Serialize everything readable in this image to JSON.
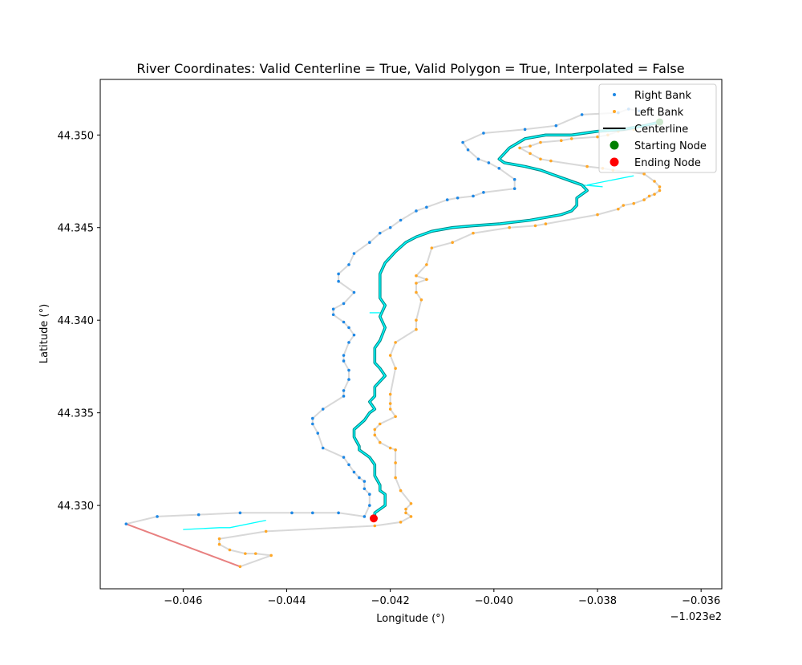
{
  "chart_data": {
    "type": "scatter",
    "title": "River Coordinates: Valid Centerline = True, Valid Polygon = True, Interpolated = False",
    "xlabel": "Longitude (°)",
    "ylabel": "Latitude (°)",
    "x_offset_text": "−1.023e2",
    "xlim": [
      -0.0476,
      -0.0356
    ],
    "ylim": [
      44.3255,
      44.353
    ],
    "xticks": [
      {
        "v": -0.046,
        "label": "−0.046"
      },
      {
        "v": -0.044,
        "label": "−0.044"
      },
      {
        "v": -0.042,
        "label": "−0.042"
      },
      {
        "v": -0.04,
        "label": "−0.040"
      },
      {
        "v": -0.038,
        "label": "−0.038"
      },
      {
        "v": -0.036,
        "label": "−0.036"
      }
    ],
    "yticks": [
      {
        "v": 44.33,
        "label": "44.330"
      },
      {
        "v": 44.335,
        "label": "44.335"
      },
      {
        "v": 44.34,
        "label": "44.340"
      },
      {
        "v": 44.345,
        "label": "44.345"
      },
      {
        "v": 44.35,
        "label": "44.350"
      }
    ],
    "legend": {
      "placement": "top-right",
      "entries": [
        {
          "label": "Right Bank",
          "kind": "dot-small",
          "color": "#1e88e5"
        },
        {
          "label": "Left Bank",
          "kind": "dot-small",
          "color": "#ffa726"
        },
        {
          "label": "Centerline",
          "kind": "line",
          "color": "#000000"
        },
        {
          "label": "Starting Node",
          "kind": "dot",
          "color": "#008000"
        },
        {
          "label": "Ending Node",
          "kind": "dot",
          "color": "#ff0000"
        }
      ]
    },
    "colors": {
      "right_bank": "#1e88e5",
      "left_bank": "#ffa726",
      "bank_line": "#d8d8d8",
      "centerline_outer": "#008b8b",
      "centerline_inner": "#00ffff",
      "transects": "#00ffff",
      "closing_segment": "#e88080",
      "end_node": "#ff0000",
      "start_node": "#008000"
    },
    "series": [
      {
        "name": "Right Bank",
        "points": [
          [
            -0.0471,
            44.329
          ],
          [
            -0.0465,
            44.3294
          ],
          [
            -0.0457,
            44.3295
          ],
          [
            -0.0449,
            44.3296
          ],
          [
            -0.0439,
            44.3296
          ],
          [
            -0.0435,
            44.3296
          ],
          [
            -0.043,
            44.3296
          ],
          [
            -0.0425,
            44.3294
          ],
          [
            -0.0424,
            44.33
          ],
          [
            -0.0424,
            44.3306
          ],
          [
            -0.0425,
            44.3309
          ],
          [
            -0.0425,
            44.3313
          ],
          [
            -0.0426,
            44.3315
          ],
          [
            -0.0427,
            44.3318
          ],
          [
            -0.0428,
            44.3322
          ],
          [
            -0.0429,
            44.3326
          ],
          [
            -0.0433,
            44.3331
          ],
          [
            -0.0434,
            44.3339
          ],
          [
            -0.0435,
            44.3344
          ],
          [
            -0.0435,
            44.3347
          ],
          [
            -0.0433,
            44.3352
          ],
          [
            -0.0429,
            44.3359
          ],
          [
            -0.0429,
            44.3362
          ],
          [
            -0.0428,
            44.3368
          ],
          [
            -0.0428,
            44.3373
          ],
          [
            -0.0429,
            44.3378
          ],
          [
            -0.0429,
            44.3381
          ],
          [
            -0.0428,
            44.3388
          ],
          [
            -0.0427,
            44.3392
          ],
          [
            -0.0428,
            44.3396
          ],
          [
            -0.0429,
            44.3399
          ],
          [
            -0.0431,
            44.3403
          ],
          [
            -0.0431,
            44.3406
          ],
          [
            -0.0429,
            44.3409
          ],
          [
            -0.0427,
            44.3415
          ],
          [
            -0.043,
            44.3421
          ],
          [
            -0.043,
            44.3425
          ],
          [
            -0.0428,
            44.343
          ],
          [
            -0.0427,
            44.3436
          ],
          [
            -0.0424,
            44.3442
          ],
          [
            -0.0422,
            44.3447
          ],
          [
            -0.042,
            44.345
          ],
          [
            -0.0418,
            44.3454
          ],
          [
            -0.0415,
            44.3459
          ],
          [
            -0.0413,
            44.3461
          ],
          [
            -0.0409,
            44.3465
          ],
          [
            -0.0407,
            44.3466
          ],
          [
            -0.0404,
            44.3467
          ],
          [
            -0.0402,
            44.3469
          ],
          [
            -0.0396,
            44.3471
          ],
          [
            -0.0396,
            44.3476
          ],
          [
            -0.0399,
            44.3482
          ],
          [
            -0.0401,
            44.3485
          ],
          [
            -0.0403,
            44.3487
          ],
          [
            -0.0405,
            44.3492
          ],
          [
            -0.0406,
            44.3496
          ],
          [
            -0.0402,
            44.3501
          ],
          [
            -0.0394,
            44.3503
          ],
          [
            -0.0388,
            44.3505
          ],
          [
            -0.0383,
            44.3511
          ],
          [
            -0.0376,
            44.3512
          ],
          [
            -0.0374,
            44.3514
          ],
          [
            -0.0372,
            44.3513
          ]
        ]
      },
      {
        "name": "Left Bank",
        "points": [
          [
            -0.0449,
            44.3267
          ],
          [
            -0.0443,
            44.3273
          ],
          [
            -0.0446,
            44.3274
          ],
          [
            -0.0448,
            44.3274
          ],
          [
            -0.0451,
            44.3276
          ],
          [
            -0.0453,
            44.3279
          ],
          [
            -0.0453,
            44.3282
          ],
          [
            -0.0444,
            44.3286
          ],
          [
            -0.0423,
            44.3289
          ],
          [
            -0.0418,
            44.3291
          ],
          [
            -0.0416,
            44.3294
          ],
          [
            -0.0417,
            44.3296
          ],
          [
            -0.0417,
            44.3298
          ],
          [
            -0.0416,
            44.3301
          ],
          [
            -0.0418,
            44.3308
          ],
          [
            -0.0419,
            44.3315
          ],
          [
            -0.0419,
            44.3323
          ],
          [
            -0.0419,
            44.333
          ],
          [
            -0.042,
            44.3331
          ],
          [
            -0.0422,
            44.3334
          ],
          [
            -0.0423,
            44.3338
          ],
          [
            -0.0423,
            44.3341
          ],
          [
            -0.0422,
            44.3344
          ],
          [
            -0.0419,
            44.3348
          ],
          [
            -0.042,
            44.3352
          ],
          [
            -0.042,
            44.3355
          ],
          [
            -0.042,
            44.336
          ],
          [
            -0.0419,
            44.3374
          ],
          [
            -0.042,
            44.3381
          ],
          [
            -0.0419,
            44.3388
          ],
          [
            -0.0415,
            44.3395
          ],
          [
            -0.0415,
            44.34
          ],
          [
            -0.0414,
            44.3411
          ],
          [
            -0.0415,
            44.3415
          ],
          [
            -0.0415,
            44.342
          ],
          [
            -0.0413,
            44.3422
          ],
          [
            -0.0415,
            44.3424
          ],
          [
            -0.0413,
            44.343
          ],
          [
            -0.0412,
            44.3439
          ],
          [
            -0.0408,
            44.3442
          ],
          [
            -0.0404,
            44.3447
          ],
          [
            -0.0397,
            44.345
          ],
          [
            -0.0392,
            44.3451
          ],
          [
            -0.039,
            44.3452
          ],
          [
            -0.038,
            44.3457
          ],
          [
            -0.0376,
            44.346
          ],
          [
            -0.0375,
            44.3462
          ],
          [
            -0.0373,
            44.3463
          ],
          [
            -0.0371,
            44.3465
          ],
          [
            -0.037,
            44.3467
          ],
          [
            -0.0369,
            44.3468
          ],
          [
            -0.0368,
            44.347
          ],
          [
            -0.0368,
            44.3472
          ],
          [
            -0.0369,
            44.3475
          ],
          [
            -0.0371,
            44.3479
          ],
          [
            -0.0377,
            44.3481
          ],
          [
            -0.0379,
            44.3482
          ],
          [
            -0.0382,
            44.3483
          ],
          [
            -0.0389,
            44.3486
          ],
          [
            -0.0391,
            44.3487
          ],
          [
            -0.0393,
            44.349
          ],
          [
            -0.0395,
            44.3493
          ],
          [
            -0.0393,
            44.3494
          ],
          [
            -0.0391,
            44.3496
          ],
          [
            -0.0387,
            44.3497
          ],
          [
            -0.0385,
            44.3498
          ],
          [
            -0.038,
            44.3499
          ],
          [
            -0.0378,
            44.35
          ],
          [
            -0.0376,
            44.3502
          ],
          [
            -0.0373,
            44.3503
          ]
        ]
      },
      {
        "name": "Centerline",
        "points": [
          [
            -0.0423,
            44.3294
          ],
          [
            -0.0423,
            44.3296
          ],
          [
            -0.0422,
            44.3298
          ],
          [
            -0.0421,
            44.33
          ],
          [
            -0.0421,
            44.3304
          ],
          [
            -0.0421,
            44.3306
          ],
          [
            -0.0422,
            44.3308
          ],
          [
            -0.0422,
            44.3311
          ],
          [
            -0.0423,
            44.3316
          ],
          [
            -0.0423,
            44.3322
          ],
          [
            -0.0424,
            44.3326
          ],
          [
            -0.0425,
            44.3328
          ],
          [
            -0.0426,
            44.333
          ],
          [
            -0.0426,
            44.3332
          ],
          [
            -0.0427,
            44.3337
          ],
          [
            -0.0427,
            44.3341
          ],
          [
            -0.0425,
            44.3346
          ],
          [
            -0.0424,
            44.335
          ],
          [
            -0.0423,
            44.3352
          ],
          [
            -0.0424,
            44.3356
          ],
          [
            -0.0423,
            44.3359
          ],
          [
            -0.0423,
            44.3364
          ],
          [
            -0.0422,
            44.3367
          ],
          [
            -0.0421,
            44.337
          ],
          [
            -0.0422,
            44.3374
          ],
          [
            -0.0423,
            44.3377
          ],
          [
            -0.0423,
            44.338
          ],
          [
            -0.0423,
            44.3385
          ],
          [
            -0.0422,
            44.3389
          ],
          [
            -0.0421,
            44.3396
          ],
          [
            -0.0422,
            44.3402
          ],
          [
            -0.0421,
            44.3408
          ],
          [
            -0.0422,
            44.3412
          ],
          [
            -0.0422,
            44.3417
          ],
          [
            -0.0422,
            44.342
          ],
          [
            -0.0422,
            44.3425
          ],
          [
            -0.0421,
            44.3431
          ],
          [
            -0.042,
            44.3434
          ],
          [
            -0.0419,
            44.3437
          ],
          [
            -0.0417,
            44.3442
          ],
          [
            -0.0415,
            44.3445
          ],
          [
            -0.0412,
            44.3448
          ],
          [
            -0.0408,
            44.345
          ],
          [
            -0.0404,
            44.3451
          ],
          [
            -0.0399,
            44.3452
          ],
          [
            -0.0393,
            44.3454
          ],
          [
            -0.0389,
            44.3456
          ],
          [
            -0.0387,
            44.3457
          ],
          [
            -0.0385,
            44.3459
          ],
          [
            -0.0384,
            44.3462
          ],
          [
            -0.0384,
            44.3466
          ],
          [
            -0.0382,
            44.347
          ],
          [
            -0.0383,
            44.3473
          ],
          [
            -0.0385,
            44.3475
          ],
          [
            -0.0389,
            44.3479
          ],
          [
            -0.0391,
            44.3481
          ],
          [
            -0.0394,
            44.3483
          ],
          [
            -0.0398,
            44.3485
          ],
          [
            -0.0399,
            44.3487
          ],
          [
            -0.0398,
            44.349
          ],
          [
            -0.0397,
            44.3493
          ],
          [
            -0.0394,
            44.3498
          ],
          [
            -0.039,
            44.35
          ],
          [
            -0.0385,
            44.35
          ],
          [
            -0.038,
            44.3502
          ],
          [
            -0.0375,
            44.3503
          ],
          [
            -0.0371,
            44.3505
          ],
          [
            -0.0368,
            44.3507
          ]
        ]
      }
    ],
    "transects": [
      [
        [
          -0.046,
          44.3287
        ],
        [
          -0.0453,
          44.3288
        ],
        [
          -0.0451,
          44.3288
        ],
        [
          -0.0444,
          44.3292
        ]
      ],
      [
        [
          -0.0424,
          44.3404
        ],
        [
          -0.0422,
          44.3404
        ]
      ],
      [
        [
          -0.0383,
          44.3473
        ],
        [
          -0.0379,
          44.3472
        ],
        [
          -0.0382,
          44.3473
        ],
        [
          -0.0373,
          44.3478
        ]
      ]
    ],
    "closing_segment": [
      [
        -0.0471,
        44.329
      ],
      [
        -0.0449,
        44.3267
      ]
    ],
    "ending_node": [
      -0.04232,
      44.3293
    ],
    "starting_node": [
      -0.0368,
      44.3507
    ]
  }
}
